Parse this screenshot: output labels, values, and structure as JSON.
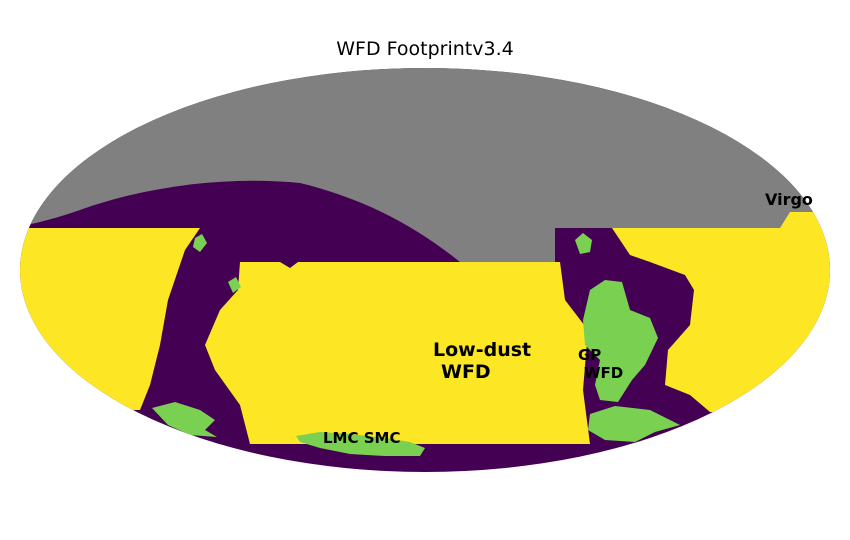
{
  "title": "WFD Footprintv3.4",
  "colors": {
    "background_sky": "#808080",
    "outside": "#440154",
    "wfd": "#fde725",
    "special": "#7ad151"
  },
  "regions": {
    "virgo": "Virgo",
    "low_dust_line1": "Low-dust",
    "low_dust_line2": "WFD",
    "gp_line1": "GP",
    "gp_line2": "WFD",
    "magellanic": "LMC SMC"
  }
}
